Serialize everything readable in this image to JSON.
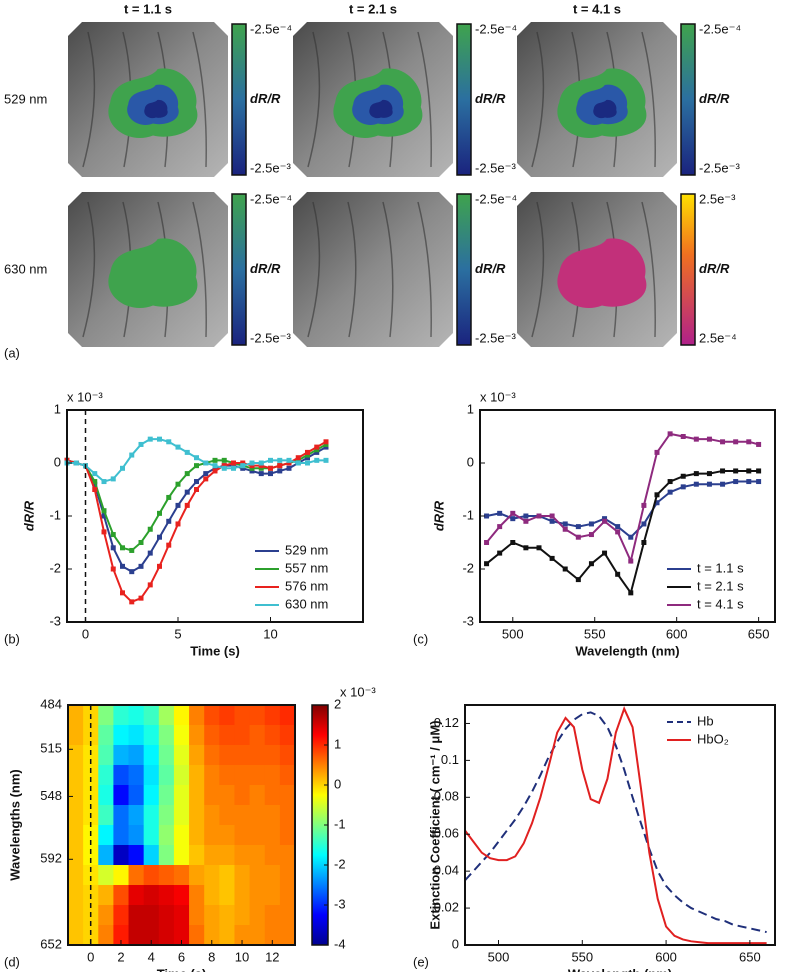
{
  "image_panel": {
    "panel_label": "(a)",
    "columns": [
      "t = 1.1 s",
      "t = 2.1 s",
      "t = 4.1 s"
    ],
    "rows": [
      {
        "label": "529 nm",
        "colorbars": [
          {
            "top": "-2.5e⁻⁴",
            "bottom": "-2.5e⁻³",
            "label": "dR/R"
          },
          {
            "top": "-2.5e⁻⁴",
            "bottom": "-2.5e⁻³",
            "label": "dR/R"
          },
          {
            "top": "-2.5e⁻⁴",
            "bottom": "-2.5e⁻³",
            "label": "dR/R"
          }
        ]
      },
      {
        "label": "630 nm",
        "colorbars": [
          {
            "top": "-2.5e⁻⁴",
            "bottom": "-2.5e⁻³",
            "label": "dR/R"
          },
          {
            "top": "-2.5e⁻⁴",
            "bottom": "-2.5e⁻³",
            "label": "dR/R"
          },
          {
            "top": "2.5e⁻³",
            "bottom": "2.5e⁻⁴",
            "label": "dR/R"
          }
        ]
      }
    ]
  },
  "chart_data": [
    {
      "type": "line",
      "panel_label": "(b)",
      "multiplier": "x 10⁻³",
      "xlabel": "Time (s)",
      "ylabel": "dR/R",
      "xlim": [
        -1,
        15
      ],
      "xticks": [
        0,
        5,
        10
      ],
      "ylim": [
        -3,
        1
      ],
      "yticks": [
        -3,
        -2,
        -1,
        0,
        1
      ],
      "vline": 0,
      "markers": true,
      "legend": "lower right",
      "x": [
        -1,
        -0.5,
        0,
        0.5,
        1,
        1.5,
        2,
        2.5,
        3,
        3.5,
        4,
        4.5,
        5,
        5.5,
        6,
        6.5,
        7,
        7.5,
        8,
        8.5,
        9,
        9.5,
        10,
        10.5,
        11,
        11.5,
        12,
        12.5,
        13
      ],
      "series": [
        {
          "name": "529 nm",
          "color": "#2b3f8f",
          "values": [
            0.05,
            0.0,
            -0.05,
            -0.4,
            -1.0,
            -1.6,
            -1.95,
            -2.05,
            -1.95,
            -1.7,
            -1.4,
            -1.1,
            -0.8,
            -0.55,
            -0.35,
            -0.2,
            -0.1,
            -0.05,
            -0.05,
            -0.1,
            -0.15,
            -0.2,
            -0.2,
            -0.15,
            -0.1,
            0.0,
            0.1,
            0.2,
            0.3
          ]
        },
        {
          "name": "557 nm",
          "color": "#2ca02c",
          "values": [
            0.05,
            0.0,
            -0.05,
            -0.35,
            -0.9,
            -1.35,
            -1.6,
            -1.65,
            -1.5,
            -1.25,
            -0.95,
            -0.65,
            -0.4,
            -0.2,
            -0.05,
            0.0,
            0.05,
            0.05,
            0.0,
            -0.05,
            -0.1,
            -0.1,
            -0.1,
            -0.05,
            0.0,
            0.05,
            0.15,
            0.25,
            0.35
          ]
        },
        {
          "name": "576 nm",
          "color": "#e8221e",
          "values": [
            0.05,
            0.0,
            -0.05,
            -0.5,
            -1.3,
            -2.0,
            -2.45,
            -2.62,
            -2.55,
            -2.3,
            -1.95,
            -1.55,
            -1.15,
            -0.8,
            -0.5,
            -0.3,
            -0.15,
            -0.05,
            0.0,
            0.0,
            -0.05,
            -0.05,
            -0.1,
            -0.05,
            0.0,
            0.1,
            0.2,
            0.3,
            0.4
          ]
        },
        {
          "name": "630 nm",
          "color": "#3fbfd0",
          "values": [
            0.0,
            0.0,
            -0.05,
            -0.2,
            -0.35,
            -0.3,
            -0.1,
            0.15,
            0.35,
            0.45,
            0.45,
            0.4,
            0.3,
            0.2,
            0.1,
            0.0,
            -0.05,
            -0.1,
            -0.1,
            -0.05,
            0.0,
            0.0,
            0.05,
            0.05,
            0.05,
            0.0,
            0.0,
            0.05,
            0.05
          ]
        }
      ]
    },
    {
      "type": "line",
      "panel_label": "(c)",
      "multiplier": "x 10⁻³",
      "xlabel": "Wavelength (nm)",
      "ylabel": "dR/R",
      "xlim": [
        480,
        660
      ],
      "xticks": [
        500,
        550,
        600,
        650
      ],
      "ylim": [
        -3,
        1
      ],
      "yticks": [
        -3,
        -2,
        -1,
        0,
        1
      ],
      "markers": true,
      "legend": "lower right",
      "x": [
        484,
        492,
        500,
        508,
        516,
        524,
        532,
        540,
        548,
        556,
        564,
        572,
        580,
        588,
        596,
        604,
        612,
        620,
        628,
        636,
        644,
        650
      ],
      "series": [
        {
          "name": "t = 1.1 s",
          "color": "#2b3f8f",
          "values": [
            -1.0,
            -0.95,
            -1.05,
            -1.0,
            -1.0,
            -1.1,
            -1.15,
            -1.2,
            -1.15,
            -1.05,
            -1.2,
            -1.4,
            -1.15,
            -0.75,
            -0.55,
            -0.45,
            -0.4,
            -0.4,
            -0.4,
            -0.35,
            -0.35,
            -0.35
          ]
        },
        {
          "name": "t = 2.1 s",
          "color": "#111111",
          "values": [
            -1.9,
            -1.7,
            -1.5,
            -1.6,
            -1.6,
            -1.8,
            -2.0,
            -2.2,
            -1.9,
            -1.7,
            -2.1,
            -2.45,
            -1.5,
            -0.6,
            -0.35,
            -0.25,
            -0.2,
            -0.2,
            -0.15,
            -0.15,
            -0.15,
            -0.15
          ]
        },
        {
          "name": "t = 4.1 s",
          "color": "#8e2a7e",
          "values": [
            -1.5,
            -1.2,
            -0.95,
            -1.1,
            -1.0,
            -1.0,
            -1.25,
            -1.4,
            -1.35,
            -1.1,
            -1.3,
            -1.85,
            -0.8,
            0.2,
            0.55,
            0.5,
            0.45,
            0.45,
            0.4,
            0.4,
            0.4,
            0.35
          ]
        }
      ]
    },
    {
      "type": "heatmap",
      "panel_label": "(d)",
      "multiplier": "x 10⁻³",
      "xlabel": "Time (s)",
      "ylabel": "Wavelengths (nm)",
      "xlim": [
        -1.5,
        13.5
      ],
      "xticks": [
        0,
        2,
        4,
        6,
        8,
        10,
        12
      ],
      "ylim": [
        484,
        652
      ],
      "yreverse": true,
      "yticks": [
        484,
        515,
        548,
        592,
        652
      ],
      "vline": 0,
      "zlim": [
        -4,
        2
      ],
      "zticks": [
        -4,
        -3,
        -2,
        -1,
        0,
        1,
        2
      ],
      "values": [
        [
          0.2,
          0,
          -1.0,
          -1.5,
          -1.6,
          -1.4,
          -0.8,
          -0.2,
          0.5,
          0.8,
          0.9,
          0.8,
          0.8,
          0.9,
          1.0
        ],
        [
          0.2,
          0,
          -1.2,
          -1.8,
          -1.9,
          -1.6,
          -1.0,
          -0.3,
          0.4,
          0.7,
          0.8,
          0.8,
          0.7,
          0.8,
          0.9
        ],
        [
          0.1,
          -0.1,
          -1.3,
          -2.2,
          -2.3,
          -1.8,
          -1.1,
          -0.4,
          0.3,
          0.6,
          0.7,
          0.7,
          0.7,
          0.7,
          0.8
        ],
        [
          0.1,
          -0.1,
          -1.5,
          -2.8,
          -2.6,
          -1.9,
          -1.2,
          -0.5,
          0.2,
          0.5,
          0.6,
          0.6,
          0.6,
          0.6,
          0.7
        ],
        [
          0.1,
          -0.1,
          -1.6,
          -3.2,
          -2.7,
          -1.8,
          -1.1,
          -0.4,
          0.2,
          0.5,
          0.5,
          0.6,
          0.5,
          0.6,
          0.6
        ],
        [
          0.1,
          -0.1,
          -1.4,
          -2.6,
          -2.3,
          -1.6,
          -1.0,
          -0.4,
          0.2,
          0.4,
          0.5,
          0.5,
          0.5,
          0.5,
          0.6
        ],
        [
          0.1,
          -0.2,
          -1.8,
          -2.6,
          -2.4,
          -1.6,
          -0.9,
          -0.3,
          0.2,
          0.4,
          0.4,
          0.5,
          0.5,
          0.5,
          0.6
        ],
        [
          0.1,
          -0.2,
          -2.2,
          -3.6,
          -3.2,
          -2.0,
          -1.0,
          -0.3,
          0.1,
          0.3,
          0.3,
          0.4,
          0.4,
          0.5,
          0.5
        ],
        [
          0.1,
          -0.1,
          -0.5,
          -0.2,
          0.6,
          0.8,
          0.7,
          0.6,
          0.3,
          0.2,
          0.1,
          0.3,
          0.4,
          0.4,
          0.5
        ],
        [
          0.1,
          0,
          0.2,
          0.8,
          1.4,
          1.5,
          1.4,
          1.3,
          0.5,
          0.2,
          0.1,
          0.3,
          0.4,
          0.4,
          0.5
        ],
        [
          0.1,
          0,
          0.4,
          1.0,
          1.6,
          1.6,
          1.5,
          1.4,
          0.5,
          0.3,
          0.2,
          0.3,
          0.4,
          0.5,
          0.5
        ],
        [
          0.1,
          0,
          0.5,
          1.1,
          1.6,
          1.6,
          1.5,
          1.4,
          0.6,
          0.3,
          0.2,
          0.4,
          0.4,
          0.5,
          0.5
        ]
      ]
    },
    {
      "type": "line",
      "panel_label": "(e)",
      "xlabel": "Wavelength (nm)",
      "ylabel": "Extinction Coefficient ( cm⁻¹ / μM)",
      "xlim": [
        480,
        665
      ],
      "xticks": [
        500,
        550,
        600,
        650
      ],
      "ylim": [
        0,
        0.13
      ],
      "yticks": [
        0,
        0.02,
        0.04,
        0.06,
        0.08,
        0.1,
        0.12
      ],
      "markers": false,
      "legend": "upper right",
      "x": [
        480,
        485,
        490,
        495,
        500,
        505,
        510,
        515,
        520,
        525,
        530,
        535,
        540,
        545,
        550,
        555,
        560,
        565,
        570,
        575,
        580,
        585,
        590,
        595,
        600,
        605,
        610,
        615,
        620,
        625,
        630,
        635,
        640,
        645,
        650,
        655,
        660
      ],
      "series": [
        {
          "name": "Hb",
          "color": "#1f2f7a",
          "linestyle": "dashed",
          "values": [
            0.035,
            0.04,
            0.045,
            0.05,
            0.056,
            0.062,
            0.068,
            0.075,
            0.083,
            0.092,
            0.102,
            0.11,
            0.117,
            0.122,
            0.125,
            0.126,
            0.124,
            0.118,
            0.108,
            0.095,
            0.08,
            0.066,
            0.052,
            0.04,
            0.032,
            0.027,
            0.023,
            0.02,
            0.018,
            0.016,
            0.014,
            0.013,
            0.011,
            0.01,
            0.009,
            0.008,
            0.007
          ]
        },
        {
          "name": "HbO₂",
          "color": "#e02020",
          "linestyle": "solid",
          "values": [
            0.062,
            0.056,
            0.05,
            0.047,
            0.046,
            0.046,
            0.048,
            0.055,
            0.066,
            0.08,
            0.097,
            0.115,
            0.123,
            0.118,
            0.095,
            0.079,
            0.077,
            0.09,
            0.115,
            0.128,
            0.118,
            0.085,
            0.05,
            0.025,
            0.01,
            0.005,
            0.003,
            0.002,
            0.0015,
            0.001,
            0.001,
            0.001,
            0.001,
            0.001,
            0.001,
            0.001,
            0.001
          ]
        }
      ]
    }
  ]
}
